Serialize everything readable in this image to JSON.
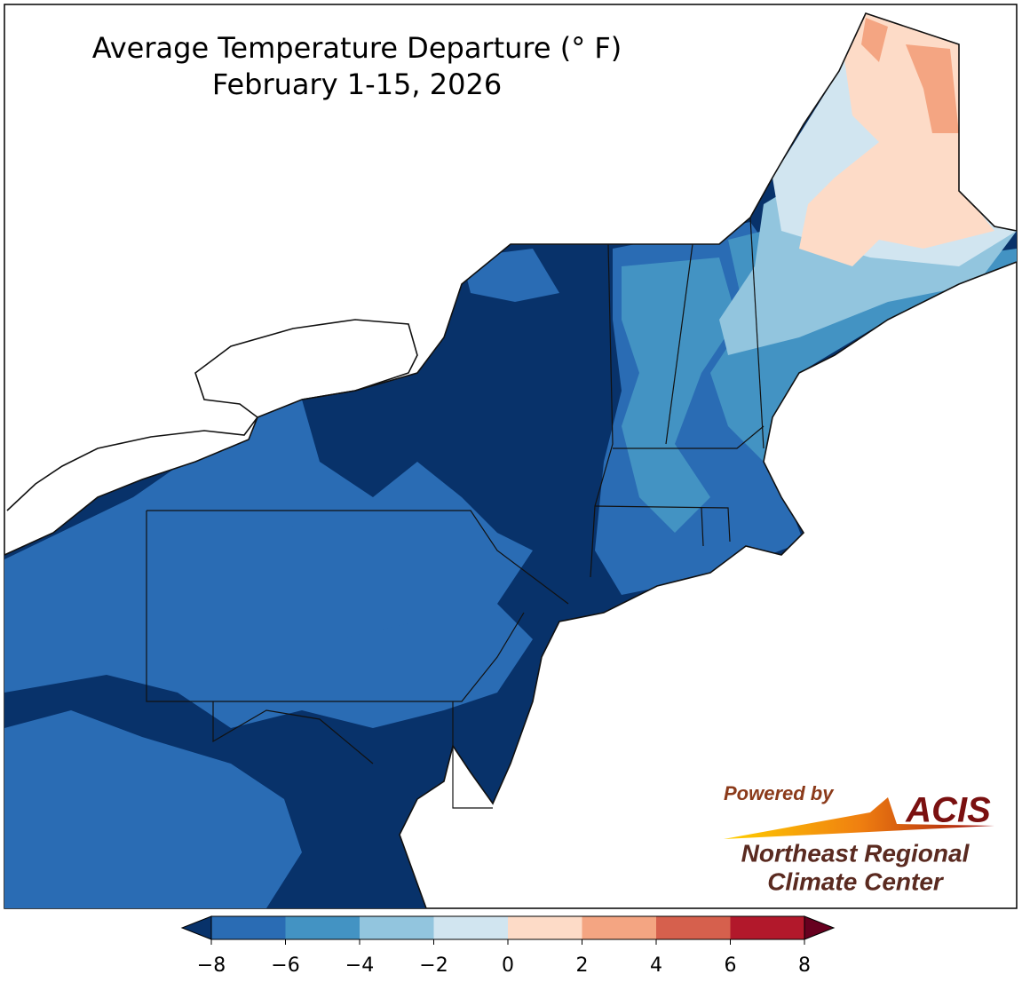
{
  "title": "Average Temperature Departure (° F)",
  "subtitle": "February 1-15, 2026",
  "colorbar": {
    "ticks": [
      {
        "value": -8,
        "label": "−8"
      },
      {
        "value": -6,
        "label": "−6"
      },
      {
        "value": -4,
        "label": "−4"
      },
      {
        "value": -2,
        "label": "−2"
      },
      0,
      2,
      4,
      6,
      8
    ],
    "colors": [
      "#2a6cb4",
      "#4393c3",
      "#92c5de",
      "#d1e5f0",
      "#fddbc7",
      "#f4a582",
      "#d6604d",
      "#b2182b"
    ],
    "under_color": "#08326a",
    "over_color": "#67001f"
  },
  "logo": {
    "powered_by": "Powered by",
    "name": "ACIS",
    "line1": "Northeast Regional",
    "line2": "Climate Center"
  }
}
